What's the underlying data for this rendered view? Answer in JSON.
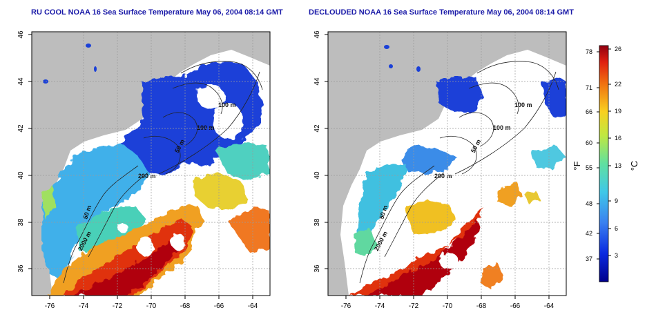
{
  "left_panel": {
    "title": "RU COOL NOAA 16 Sea Surface Temperature May 06, 2004 08:14 GMT",
    "x_ticks": [
      "-76",
      "-74",
      "-72",
      "-70",
      "-68",
      "-66",
      "-64"
    ],
    "y_ticks": [
      "36",
      "38",
      "40",
      "42",
      "44",
      "46"
    ],
    "contour_labels": [
      "100 m",
      "100 m",
      "50 m",
      "200 m",
      "50 m",
      "2000 m"
    ]
  },
  "right_panel": {
    "title": "DECLOUDED NOAA 16 Sea Surface Temperature May 06, 2004 08:14 GMT",
    "x_ticks": [
      "-76",
      "-74",
      "-72",
      "-70",
      "-68",
      "-66",
      "-64"
    ],
    "y_ticks": [
      "36",
      "38",
      "40",
      "42",
      "44",
      "46"
    ],
    "contour_labels": [
      "100 m",
      "100 m",
      "50 m",
      "200 m",
      "50 m",
      "2000 m"
    ]
  },
  "colorbar": {
    "fahrenheit_label": "°F",
    "celsius_label": "°C",
    "fahrenheit_ticks": [
      "78",
      "71",
      "66",
      "60",
      "55",
      "48",
      "42",
      "37"
    ],
    "celsius_ticks": [
      "26",
      "22",
      "19",
      "16",
      "13",
      "9",
      "6",
      "3"
    ]
  },
  "colors": {
    "land": "#bdbdbd",
    "cloud": "#ffffff",
    "title": "#1a1aa8",
    "cold": "#1030c0",
    "cool": "#40b0e8",
    "mid": "#60d0a0",
    "warm": "#f0c020",
    "hot": "#e03010",
    "hottest": "#b00010"
  }
}
